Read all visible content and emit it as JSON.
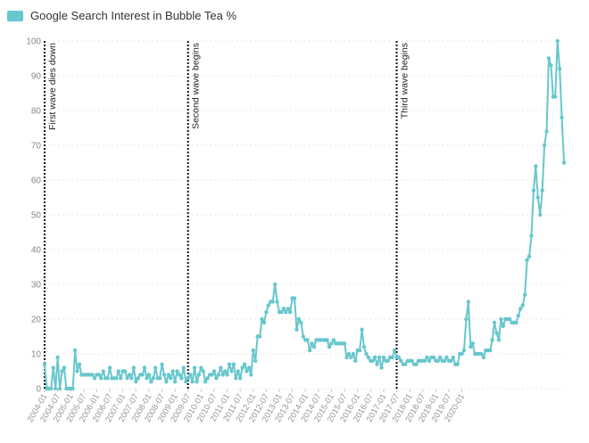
{
  "chart_data": {
    "type": "line",
    "title": "",
    "xlabel": "",
    "ylabel": "",
    "ylim": [
      0,
      100
    ],
    "yticks": [
      0,
      10,
      20,
      30,
      40,
      50,
      60,
      70,
      80,
      90,
      100
    ],
    "grid": true,
    "legend": "top-left",
    "color": "#66c7cc",
    "annotation_color": "#111111",
    "series": [
      {
        "name": "Google Search Interest in Bubble Tea %",
        "start": "2004-01",
        "values": [
          7,
          0,
          0,
          0,
          6,
          0,
          9,
          0,
          5,
          6,
          0,
          0,
          0,
          0,
          11,
          5,
          7,
          4,
          4,
          4,
          4,
          4,
          4,
          3,
          4,
          4,
          3,
          5,
          3,
          3,
          6,
          3,
          3,
          3,
          5,
          3,
          5,
          5,
          3,
          4,
          3,
          6,
          2,
          3,
          4,
          4,
          6,
          3,
          4,
          2,
          3,
          6,
          3,
          3,
          7,
          4,
          2,
          4,
          3,
          5,
          2,
          5,
          4,
          3,
          6,
          2,
          3,
          4,
          2,
          6,
          2,
          4,
          6,
          5,
          2,
          3,
          4,
          4,
          5,
          3,
          4,
          6,
          4,
          5,
          4,
          7,
          5,
          7,
          3,
          5,
          3,
          6,
          7,
          5,
          6,
          4,
          11,
          8,
          15,
          15,
          20,
          19,
          22,
          24,
          25,
          25,
          30,
          25,
          22,
          22,
          23,
          22,
          23,
          22,
          26,
          26,
          17,
          20,
          19,
          15,
          14,
          14,
          11,
          13,
          12,
          14,
          14,
          14,
          14,
          14,
          14,
          12,
          13,
          14,
          13,
          13,
          13,
          13,
          13,
          9,
          10,
          9,
          10,
          8,
          11,
          11,
          17,
          12,
          10,
          9,
          8,
          8,
          9,
          7,
          9,
          6,
          9,
          8,
          8,
          9,
          9,
          11,
          9,
          9,
          8,
          7,
          7,
          8,
          8,
          8,
          7,
          7,
          8,
          8,
          8,
          8,
          9,
          8,
          9,
          9,
          8,
          8,
          9,
          8,
          8,
          9,
          8,
          8,
          9,
          7,
          7,
          10,
          10,
          11,
          20,
          25,
          12,
          13,
          10,
          10,
          10,
          10,
          9,
          11,
          11,
          11,
          14,
          19,
          16,
          14,
          20,
          18,
          20,
          20,
          20,
          19,
          19,
          19,
          21,
          23,
          24,
          27,
          37,
          38,
          44,
          57,
          64,
          55,
          50,
          57,
          70,
          74,
          95,
          93,
          84,
          84,
          100,
          92,
          78,
          65
        ]
      }
    ],
    "xticks": [
      "2004-01",
      "2004-07",
      "2005-01",
      "2005-07",
      "2006-01",
      "2006-07",
      "2007-01",
      "2007-07",
      "2008-01",
      "2008-07",
      "2009-01",
      "2009-07",
      "2010-01",
      "2010-07",
      "2011-01",
      "2011-07",
      "2012-01",
      "2012-07",
      "2013-01",
      "2013-07",
      "2014-01",
      "2014-07",
      "2015-01",
      "2015-07",
      "2016-01",
      "2016-07",
      "2017-01",
      "2017-07",
      "2018-01",
      "2018-07",
      "2019-01",
      "2019-07",
      "2020-01"
    ],
    "annotations": [
      {
        "x": "2004-01",
        "label": "First wave dies down"
      },
      {
        "x": "2009-07",
        "label": "Second wave begins"
      },
      {
        "x": "2017-07",
        "label": "Third wave begins"
      }
    ]
  }
}
